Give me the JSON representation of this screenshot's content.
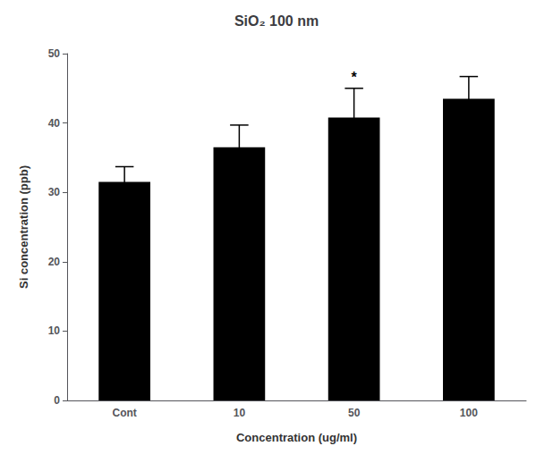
{
  "chart_data": {
    "type": "bar",
    "title": "SiO₂ 100 nm",
    "xlabel": "Concentration (ug/ml)",
    "ylabel": "Si concentration (ppb)",
    "categories": [
      "Cont",
      "10",
      "50",
      "100"
    ],
    "values": [
      31.5,
      36.5,
      40.8,
      43.5
    ],
    "errors": [
      2.2,
      3.2,
      4.2,
      3.2
    ],
    "color": "#000000",
    "ylim": [
      0,
      50
    ],
    "yticks": [
      0,
      10,
      20,
      30,
      40,
      50
    ],
    "grid": false,
    "annotations": [
      {
        "text": "*",
        "x": "50"
      }
    ]
  }
}
